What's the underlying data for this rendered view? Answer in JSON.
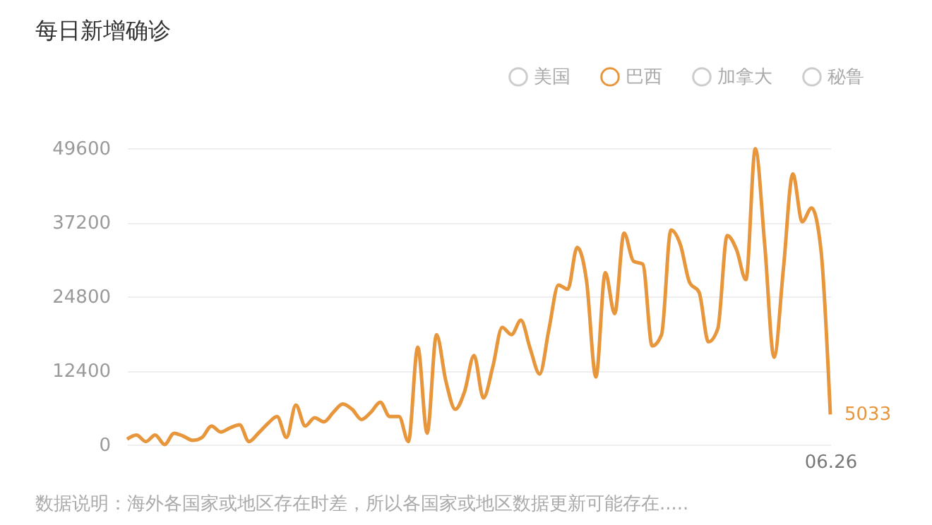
{
  "chart_data": {
    "type": "line",
    "title": "每日新增确诊",
    "categories": [
      null,
      null,
      null,
      null,
      null,
      null,
      null,
      null,
      null,
      null,
      null,
      null,
      null,
      null,
      null,
      null,
      null,
      null,
      null,
      null,
      null,
      null,
      null,
      null,
      null,
      null,
      null,
      null,
      null,
      null,
      null,
      null,
      null,
      null,
      null,
      null,
      null,
      null,
      null,
      null,
      null,
      null,
      null,
      null,
      null,
      null,
      null,
      null,
      null,
      null,
      null,
      null,
      null,
      null,
      null,
      null,
      null,
      null,
      null,
      null,
      null,
      null,
      null,
      null,
      null,
      null,
      null,
      null,
      null,
      null,
      null,
      null,
      null,
      null,
      null,
      "06.26"
    ],
    "series": [
      {
        "name": "美国",
        "color": "#cccccc",
        "values": [
          null,
          null,
          null,
          null,
          null,
          null,
          null,
          null,
          null,
          null,
          null,
          null,
          null,
          null,
          null,
          null,
          null,
          null,
          null,
          null,
          null,
          null,
          null,
          null,
          null,
          null,
          null,
          null,
          null,
          null,
          null,
          null,
          null,
          null,
          null,
          null,
          null,
          null,
          null,
          null,
          null,
          null,
          null,
          null,
          null,
          null,
          null,
          null,
          null,
          null,
          null,
          null,
          null,
          null,
          null,
          null,
          null,
          null,
          null,
          null,
          null,
          null,
          null,
          null,
          null,
          null,
          null,
          null,
          null,
          null,
          null,
          null,
          null,
          null,
          null,
          null
        ]
      },
      {
        "name": "巴西",
        "color": "#e8963c",
        "values": [
          900,
          1600,
          500,
          1600,
          0,
          1900,
          1400,
          700,
          1200,
          3100,
          2100,
          2800,
          3300,
          500,
          1900,
          3500,
          4700,
          1200,
          6600,
          3100,
          4500,
          3800,
          5400,
          6800,
          5900,
          4200,
          5400,
          7100,
          4700,
          4700,
          500,
          16300,
          1900,
          18400,
          10600,
          5900,
          8900,
          14900,
          7800,
          13000,
          19600,
          18400,
          20800,
          16000,
          11800,
          19400,
          26700,
          26000,
          33000,
          27400,
          11300,
          28800,
          21900,
          35400,
          30700,
          30200,
          16500,
          18400,
          35900,
          33500,
          27100,
          25500,
          17200,
          19400,
          35000,
          32600,
          27600,
          49500,
          33500,
          14600,
          29500,
          45300,
          37300,
          39600,
          32600,
          5033
        ]
      },
      {
        "name": "加拿大",
        "color": "#cccccc",
        "values": [
          null,
          null,
          null,
          null,
          null,
          null,
          null,
          null,
          null,
          null,
          null,
          null,
          null,
          null,
          null,
          null,
          null,
          null,
          null,
          null,
          null,
          null,
          null,
          null,
          null,
          null,
          null,
          null,
          null,
          null,
          null,
          null,
          null,
          null,
          null,
          null,
          null,
          null,
          null,
          null,
          null,
          null,
          null,
          null,
          null,
          null,
          null,
          null,
          null,
          null,
          null,
          null,
          null,
          null,
          null,
          null,
          null,
          null,
          null,
          null,
          null,
          null,
          null,
          null,
          null,
          null,
          null,
          null,
          null,
          null,
          null,
          null,
          null,
          null,
          null,
          null
        ]
      },
      {
        "name": "秘鲁",
        "color": "#cccccc",
        "values": [
          null,
          null,
          null,
          null,
          null,
          null,
          null,
          null,
          null,
          null,
          null,
          null,
          null,
          null,
          null,
          null,
          null,
          null,
          null,
          null,
          null,
          null,
          null,
          null,
          null,
          null,
          null,
          null,
          null,
          null,
          null,
          null,
          null,
          null,
          null,
          null,
          null,
          null,
          null,
          null,
          null,
          null,
          null,
          null,
          null,
          null,
          null,
          null,
          null,
          null,
          null,
          null,
          null,
          null,
          null,
          null,
          null,
          null,
          null,
          null,
          null,
          null,
          null,
          null,
          null,
          null,
          null,
          null,
          null,
          null,
          null,
          null,
          null,
          null,
          null,
          null
        ]
      }
    ],
    "ylim": [
      0,
      49600
    ],
    "yticks": [
      0,
      12400,
      24800,
      37200,
      49600
    ],
    "grid": "y",
    "legend": "top right",
    "annotations": [
      {
        "text": "5033",
        "x": "06.26",
        "y": 5033
      },
      "数据说明：海外各国家或地区存在时差，所以各国家或地区数据更新可能存在....."
    ]
  }
}
